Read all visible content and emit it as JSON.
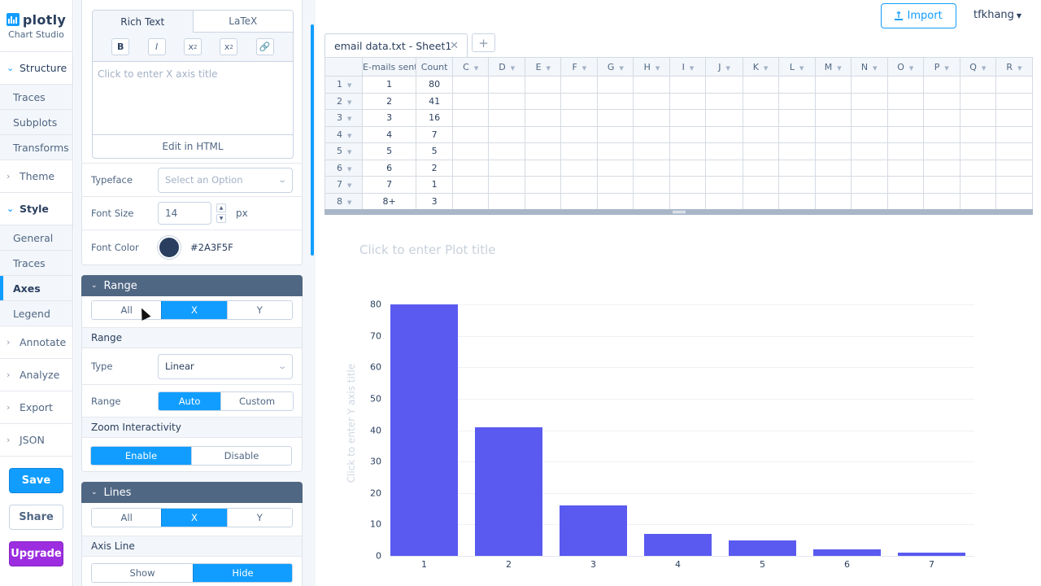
{
  "app": {
    "logo_text": "plotly",
    "logo_subtitle": "Chart Studio"
  },
  "sidebar": {
    "groups": [
      {
        "label": "Structure",
        "open": true,
        "items": [
          "Traces",
          "Subplots",
          "Transforms"
        ]
      },
      {
        "label": "Theme",
        "open": false
      },
      {
        "label": "Style",
        "open": true,
        "items": [
          "General",
          "Traces",
          "Axes",
          "Legend"
        ],
        "active_item": "Axes"
      },
      {
        "label": "Annotate",
        "open": false
      },
      {
        "label": "Analyze",
        "open": false
      },
      {
        "label": "Export",
        "open": false
      },
      {
        "label": "JSON",
        "open": false
      }
    ],
    "buttons": {
      "save": "Save",
      "share": "Share",
      "upgrade": "Upgrade"
    }
  },
  "panel": {
    "title_editor": {
      "tabs": [
        "Rich Text",
        "LaTeX"
      ],
      "active_tab": "Rich Text",
      "toolbar": [
        "B",
        "I",
        "x2-subscript",
        "x2-superscript",
        "link"
      ],
      "placeholder": "Click to enter X axis title",
      "edit_html_label": "Edit in HTML"
    },
    "typeface": {
      "label": "Typeface",
      "placeholder": "Select an Option"
    },
    "font_size": {
      "label": "Font Size",
      "value": "14",
      "unit": "px"
    },
    "font_color": {
      "label": "Font Color",
      "value": "#2A3F5F"
    },
    "range_section": {
      "title": "Range",
      "axis_selector": [
        "All",
        "X",
        "Y"
      ],
      "axis_selected": "X",
      "subheading": "Range",
      "type": {
        "label": "Type",
        "value": "Linear"
      },
      "range": {
        "label": "Range",
        "options": [
          "Auto",
          "Custom"
        ],
        "selected": "Auto"
      },
      "zoom_heading": "Zoom Interactivity",
      "zoom": {
        "options": [
          "Enable",
          "Disable"
        ],
        "selected": "Enable"
      }
    },
    "lines_section": {
      "title": "Lines",
      "axis_selector": [
        "All",
        "X",
        "Y"
      ],
      "axis_selected": "X",
      "subheading": "Axis Line",
      "axis_line": {
        "options": [
          "Show",
          "Hide"
        ],
        "selected": "Hide"
      }
    }
  },
  "header": {
    "import_label": "Import",
    "user": "tfkhang"
  },
  "grid": {
    "tab_label": "email data.txt - Sheet1",
    "add_tab": "+",
    "columns": [
      "E-mails sent",
      "Count",
      "C",
      "D",
      "E",
      "F",
      "G",
      "H",
      "I",
      "J",
      "K",
      "L",
      "M",
      "N",
      "O",
      "P",
      "Q",
      "R"
    ],
    "rows": [
      [
        "1",
        "1",
        "80"
      ],
      [
        "2",
        "2",
        "41"
      ],
      [
        "3",
        "3",
        "16"
      ],
      [
        "4",
        "4",
        "7"
      ],
      [
        "5",
        "5",
        "5"
      ],
      [
        "6",
        "6",
        "2"
      ],
      [
        "7",
        "7",
        "1"
      ],
      [
        "8",
        "8+",
        "3"
      ]
    ]
  },
  "plot": {
    "title_placeholder": "Click to enter Plot title",
    "y_title_placeholder": "Click to enter Y axis title",
    "bar_color": "#5A5AF0"
  },
  "chart_data": {
    "type": "bar",
    "title": "",
    "xlabel": "",
    "ylabel": "",
    "categories": [
      "1",
      "2",
      "3",
      "4",
      "5",
      "6",
      "7"
    ],
    "values": [
      80,
      41,
      16,
      7,
      5,
      2,
      1
    ],
    "yticks": [
      0,
      10,
      20,
      30,
      40,
      50,
      60,
      70,
      80
    ],
    "ylim": [
      0,
      80
    ],
    "grid": true,
    "legend": false
  }
}
